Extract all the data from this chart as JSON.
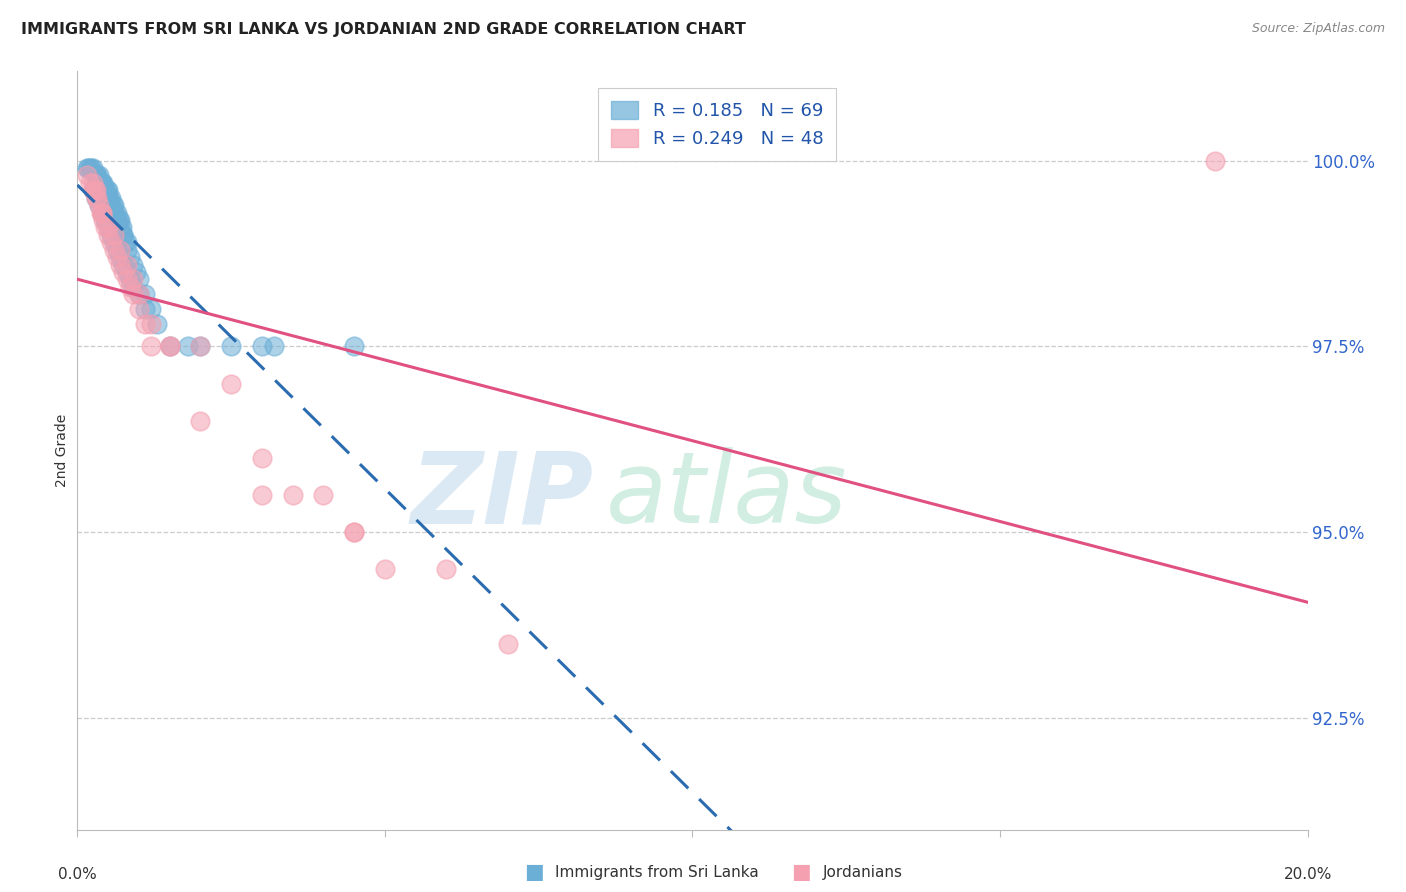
{
  "title": "IMMIGRANTS FROM SRI LANKA VS JORDANIAN 2ND GRADE CORRELATION CHART",
  "source": "Source: ZipAtlas.com",
  "ylabel": "2nd Grade",
  "ytick_values": [
    92.5,
    95.0,
    97.5,
    100.0
  ],
  "xrange": [
    0.0,
    20.0
  ],
  "yrange": [
    91.0,
    101.2
  ],
  "legend_sri_lanka": "Immigrants from Sri Lanka",
  "legend_jordanians": "Jordanians",
  "R_sri": 0.185,
  "N_sri": 69,
  "R_jor": 0.249,
  "N_jor": 48,
  "sri_lanka_color": "#6baed6",
  "jordanian_color": "#f4a0b0",
  "sri_lanka_line_color": "#2b6cb0",
  "jordanian_line_color": "#e05080",
  "background_color": "#ffffff",
  "sri_lanka_x": [
    0.15,
    0.18,
    0.2,
    0.22,
    0.25,
    0.28,
    0.3,
    0.3,
    0.32,
    0.35,
    0.35,
    0.38,
    0.4,
    0.4,
    0.42,
    0.45,
    0.45,
    0.48,
    0.5,
    0.5,
    0.5,
    0.52,
    0.55,
    0.55,
    0.58,
    0.6,
    0.6,
    0.62,
    0.65,
    0.65,
    0.68,
    0.7,
    0.7,
    0.72,
    0.75,
    0.75,
    0.78,
    0.8,
    0.8,
    0.85,
    0.9,
    0.95,
    1.0,
    1.1,
    1.2,
    1.3,
    1.5,
    1.8,
    2.0,
    2.5,
    3.0,
    3.2,
    4.5,
    0.25,
    0.3,
    0.35,
    0.4,
    0.45,
    0.5,
    0.55,
    0.6,
    0.65,
    0.7,
    0.75,
    0.8,
    0.85,
    0.9,
    1.0,
    1.1
  ],
  "sri_lanka_y": [
    99.9,
    99.9,
    99.9,
    99.9,
    99.9,
    99.8,
    99.8,
    99.8,
    99.8,
    99.8,
    99.7,
    99.7,
    99.7,
    99.7,
    99.7,
    99.6,
    99.6,
    99.6,
    99.6,
    99.5,
    99.5,
    99.5,
    99.5,
    99.4,
    99.4,
    99.4,
    99.3,
    99.3,
    99.3,
    99.2,
    99.2,
    99.2,
    99.1,
    99.1,
    99.0,
    99.0,
    98.9,
    98.9,
    98.8,
    98.7,
    98.6,
    98.5,
    98.4,
    98.2,
    98.0,
    97.8,
    97.5,
    97.5,
    97.5,
    97.5,
    97.5,
    97.5,
    97.5,
    99.6,
    99.5,
    99.4,
    99.3,
    99.2,
    99.1,
    99.0,
    98.9,
    98.8,
    98.7,
    98.6,
    98.5,
    98.4,
    98.3,
    98.2,
    98.0
  ],
  "jordanian_x": [
    0.15,
    0.2,
    0.25,
    0.28,
    0.3,
    0.32,
    0.35,
    0.38,
    0.4,
    0.42,
    0.45,
    0.5,
    0.55,
    0.6,
    0.65,
    0.7,
    0.75,
    0.8,
    0.85,
    0.9,
    1.0,
    1.1,
    1.2,
    1.5,
    2.0,
    2.5,
    3.0,
    3.5,
    4.0,
    4.5,
    5.0,
    0.3,
    0.4,
    0.5,
    0.6,
    0.7,
    0.8,
    0.9,
    1.0,
    1.2,
    1.5,
    2.0,
    3.0,
    4.5,
    6.0,
    7.0,
    18.5,
    0.25
  ],
  "jordanian_y": [
    99.8,
    99.7,
    99.7,
    99.6,
    99.6,
    99.5,
    99.4,
    99.3,
    99.3,
    99.2,
    99.1,
    99.0,
    98.9,
    98.8,
    98.7,
    98.6,
    98.5,
    98.4,
    98.3,
    98.2,
    98.0,
    97.8,
    97.5,
    97.5,
    97.5,
    97.0,
    96.0,
    95.5,
    95.5,
    95.0,
    94.5,
    99.5,
    99.3,
    99.1,
    99.0,
    98.8,
    98.6,
    98.4,
    98.2,
    97.8,
    97.5,
    96.5,
    95.5,
    95.0,
    94.5,
    93.5,
    100.0,
    99.6
  ]
}
